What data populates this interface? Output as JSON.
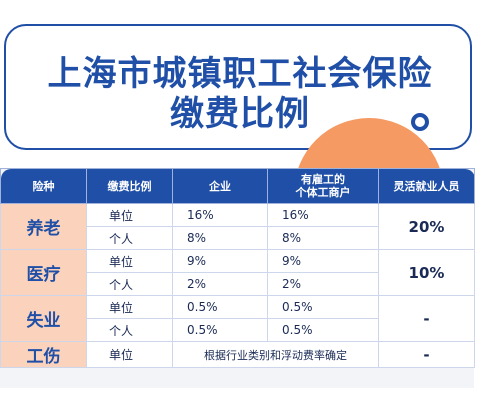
{
  "title": {
    "line1": "上海市城镇职工社会保险",
    "line2": "缴费比例"
  },
  "table": {
    "headers": {
      "kind": "险种",
      "ratio": "缴费比例",
      "enterprise": "企业",
      "individual_line1": "有雇工的",
      "individual_line2": "个体工商户",
      "flexible": "灵活就业人员"
    },
    "pension": {
      "name": "养老",
      "unit_label": "单位",
      "unit_enterprise": "16%",
      "unit_individual": "16%",
      "person_label": "个人",
      "person_enterprise": "8%",
      "person_individual": "8%",
      "flexible": "20%"
    },
    "medical": {
      "name": "医疗",
      "unit_label": "单位",
      "unit_enterprise": "9%",
      "unit_individual": "9%",
      "person_label": "个人",
      "person_enterprise": "2%",
      "person_individual": "2%",
      "flexible": "10%"
    },
    "unemployment": {
      "name": "失业",
      "unit_label": "单位",
      "unit_enterprise": "0.5%",
      "unit_individual": "0.5%",
      "person_label": "个人",
      "person_enterprise": "0.5%",
      "person_individual": "0.5%",
      "flexible": "-"
    },
    "injury": {
      "name": "工伤",
      "unit_label": "单位",
      "note": "根据行业类别和浮动费率确定",
      "flexible": "-"
    }
  },
  "colors": {
    "primary": "#1f4fa6",
    "accent": "#f59a63",
    "kind_bg": "#fbd3bd"
  }
}
